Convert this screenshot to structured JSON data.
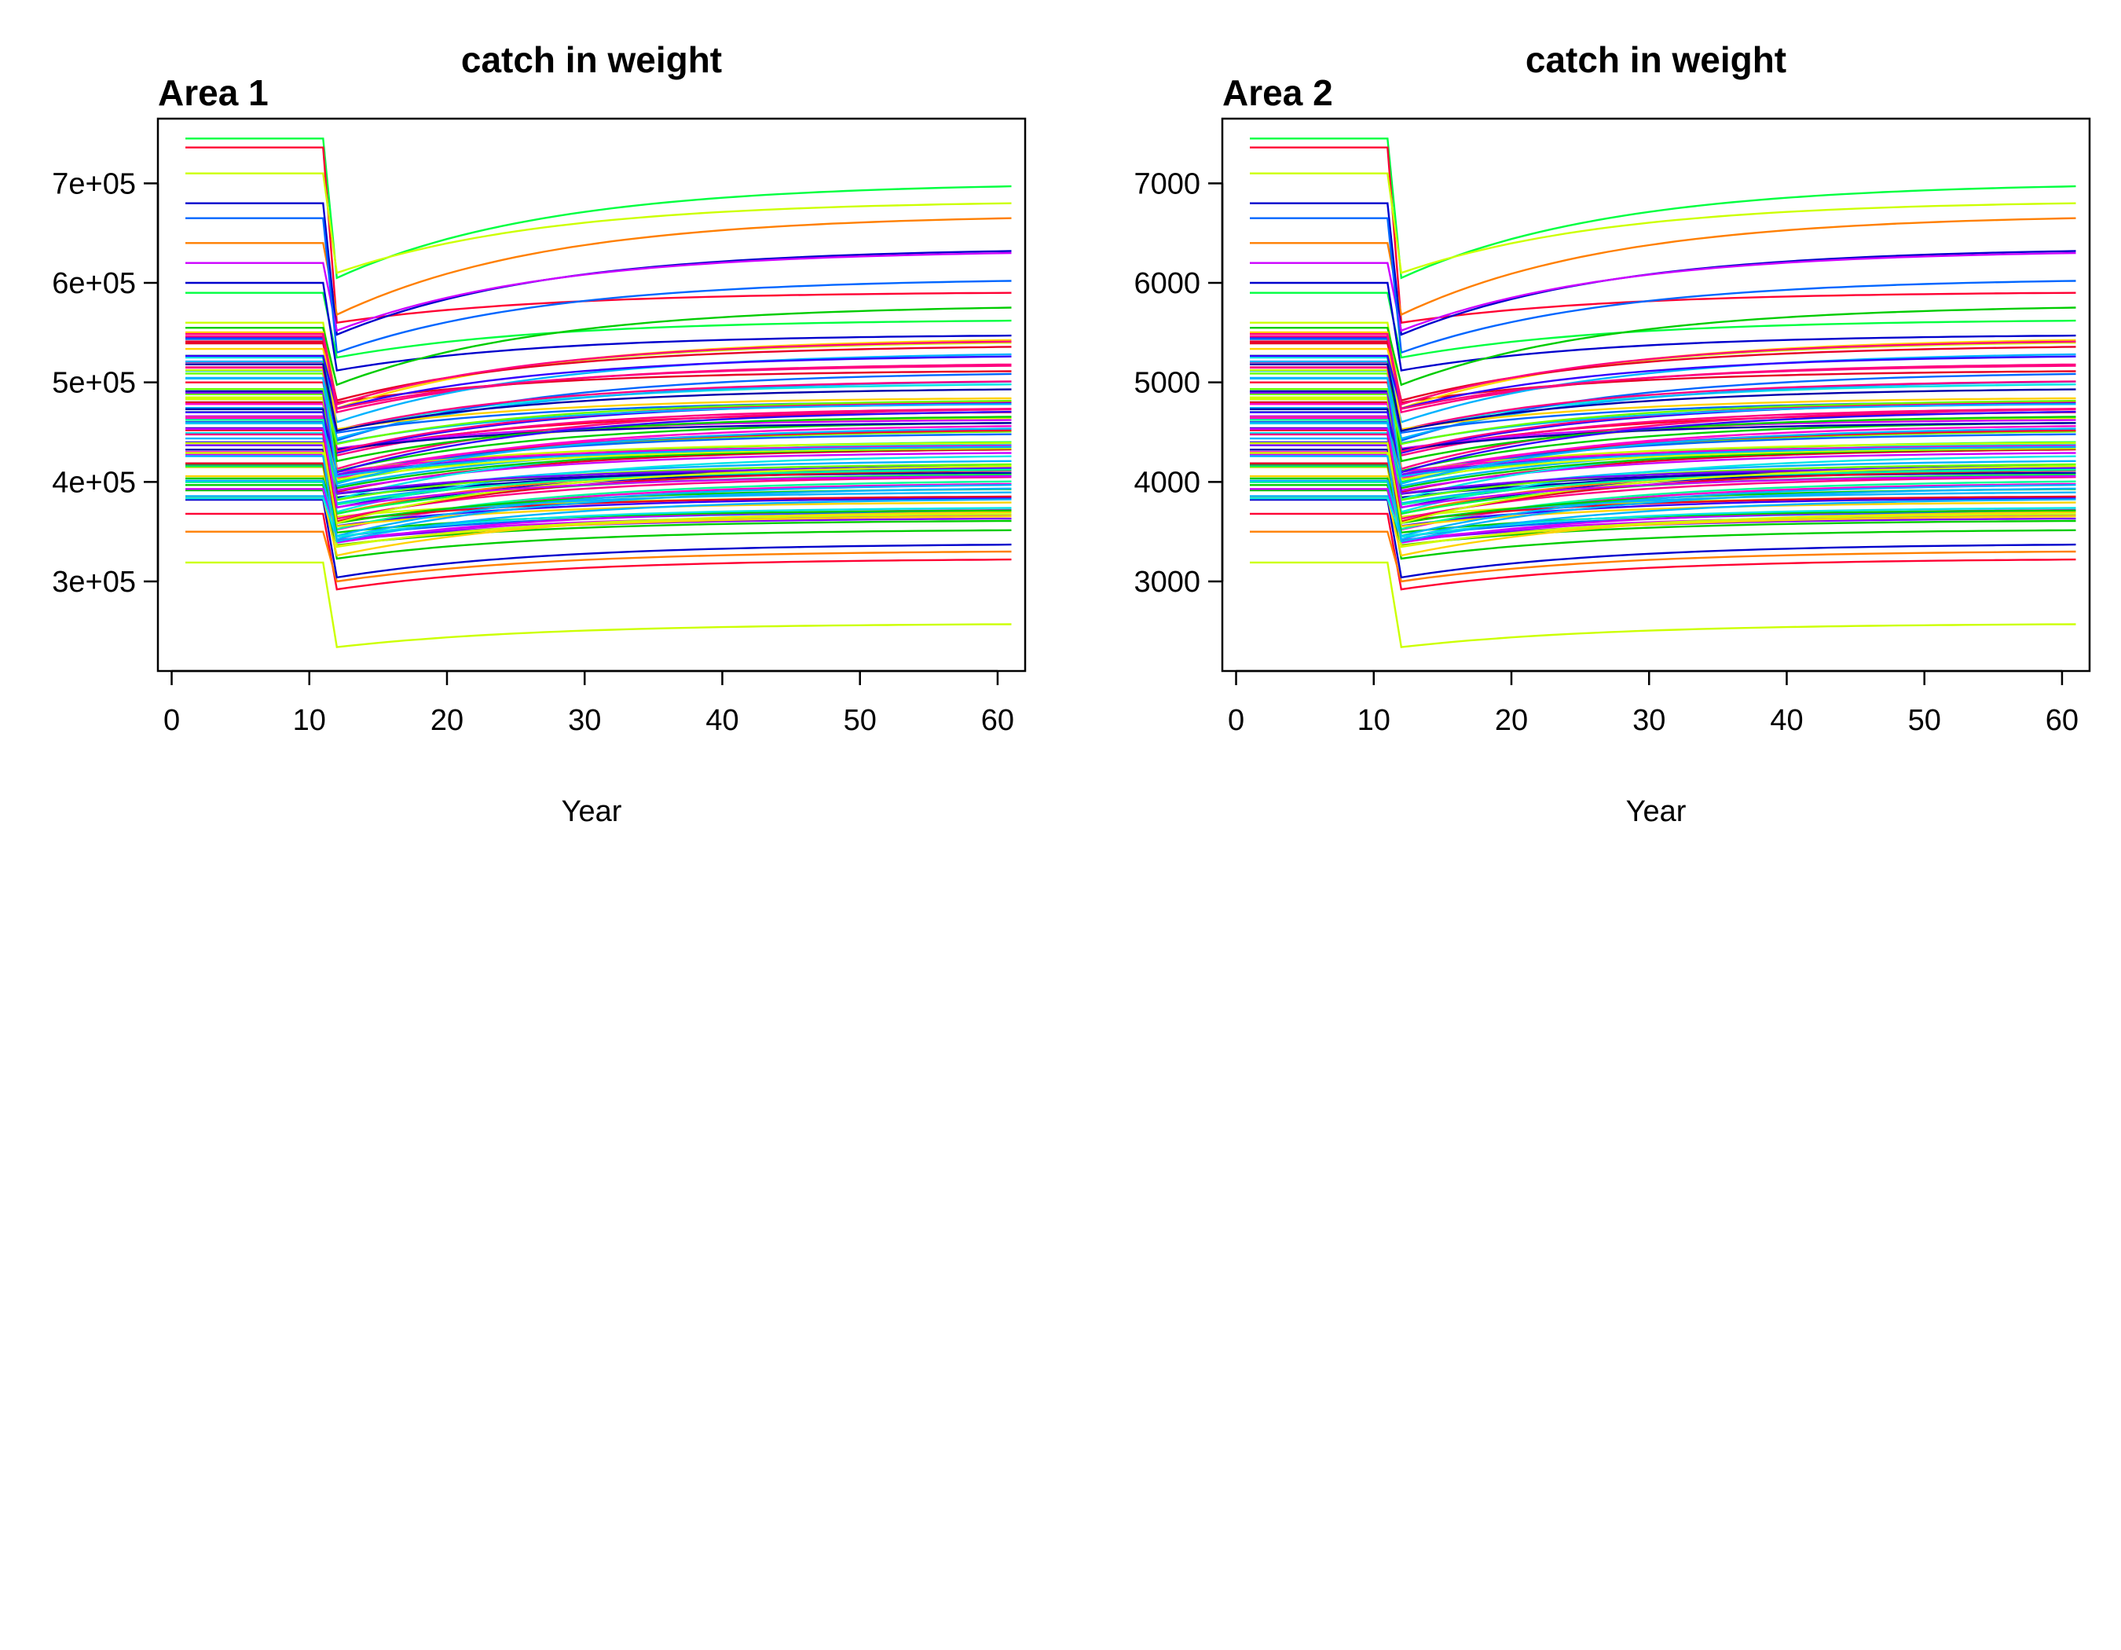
{
  "chart_data": [
    {
      "type": "line",
      "title": "catch in weight",
      "panel_label": "Area 1",
      "xlabel": "Year",
      "ylabel": "",
      "xlim": [
        -1,
        62
      ],
      "ylim": [
        210000,
        765000
      ],
      "x_ticks": [
        0,
        10,
        20,
        30,
        40,
        50,
        60
      ],
      "x_tick_labels": [
        "0",
        "10",
        "20",
        "30",
        "40",
        "50",
        "60"
      ],
      "y_ticks": [
        300000,
        400000,
        500000,
        600000,
        700000
      ],
      "y_tick_labels": [
        "3e+05",
        "4e+05",
        "5e+05",
        "6e+05",
        "7e+05"
      ],
      "grid": false,
      "legend": "none",
      "x_range": [
        1,
        61
      ],
      "shock_year": 11,
      "series_count": 100,
      "series_sample": [
        {
          "color": "#00ff40",
          "pre": 745000,
          "trough": 605000,
          "end": 697000
        },
        {
          "color": "#ff0033",
          "pre": 736000,
          "trough": 560000,
          "end": 590000
        },
        {
          "color": "#ccff00",
          "pre": 710000,
          "trough": 610000,
          "end": 680000
        },
        {
          "color": "#ff7f00",
          "pre": 640000,
          "trough": 568000,
          "end": 665000
        },
        {
          "color": "#0000cc",
          "pre": 680000,
          "trough": 548000,
          "end": 632000
        },
        {
          "color": "#cc00ff",
          "pre": 620000,
          "trough": 552000,
          "end": 630000
        },
        {
          "color": "#0066ff",
          "pre": 665000,
          "trough": 530000,
          "end": 602000
        },
        {
          "color": "#00ff40",
          "pre": 590000,
          "trough": 525000,
          "end": 562000
        },
        {
          "color": "#0000cc",
          "pre": 600000,
          "trough": 512000,
          "end": 547000
        },
        {
          "color": "#ccff00",
          "pre": 560000,
          "trough": 478000,
          "end": 540000
        },
        {
          "color": "#ff0080",
          "pre": 540000,
          "trough": 470000,
          "end": 518000
        },
        {
          "color": "#00e6e6",
          "pre": 525000,
          "trough": 452000,
          "end": 498000
        },
        {
          "color": "#ff0033",
          "pre": 500000,
          "trough": 430000,
          "end": 470000
        },
        {
          "color": "#00ff40",
          "pre": 480000,
          "trough": 400000,
          "end": 440000
        },
        {
          "color": "#0000cc",
          "pre": 460000,
          "trough": 368000,
          "end": 412000
        },
        {
          "color": "#ff00cc",
          "pre": 430000,
          "trough": 352000,
          "end": 398000
        },
        {
          "color": "#ccff00",
          "pre": 415000,
          "trough": 365000,
          "end": 385000
        },
        {
          "color": "#0066ff",
          "pre": 400000,
          "trough": 345000,
          "end": 370000
        },
        {
          "color": "#ff0033",
          "pre": 368000,
          "trough": 292000,
          "end": 322000
        },
        {
          "color": "#ff7f00",
          "pre": 350000,
          "trough": 300000,
          "end": 330000
        },
        {
          "color": "#0000cc",
          "pre": 382000,
          "trough": 304000,
          "end": 337000
        },
        {
          "color": "#ccff00",
          "pre": 319000,
          "trough": 234000,
          "end": 257000
        }
      ]
    },
    {
      "type": "line",
      "title": "catch in weight",
      "panel_label": "Area 2",
      "xlabel": "Year",
      "ylabel": "",
      "xlim": [
        -1,
        62
      ],
      "ylim": [
        2100,
        7650
      ],
      "x_ticks": [
        0,
        10,
        20,
        30,
        40,
        50,
        60
      ],
      "x_tick_labels": [
        "0",
        "10",
        "20",
        "30",
        "40",
        "50",
        "60"
      ],
      "y_ticks": [
        3000,
        4000,
        5000,
        6000,
        7000
      ],
      "y_tick_labels": [
        "3000",
        "4000",
        "5000",
        "6000",
        "7000"
      ],
      "grid": false,
      "legend": "none",
      "x_range": [
        1,
        61
      ],
      "shock_year": 11,
      "series_count": 100,
      "series_sample": [
        {
          "color": "#00ff40",
          "pre": 7450,
          "trough": 6050,
          "end": 6970
        },
        {
          "color": "#ff0033",
          "pre": 7360,
          "trough": 5600,
          "end": 5900
        },
        {
          "color": "#ccff00",
          "pre": 7100,
          "trough": 6100,
          "end": 6800
        },
        {
          "color": "#ff7f00",
          "pre": 6400,
          "trough": 5680,
          "end": 6650
        },
        {
          "color": "#0000cc",
          "pre": 6800,
          "trough": 5480,
          "end": 6320
        },
        {
          "color": "#cc00ff",
          "pre": 6200,
          "trough": 5520,
          "end": 6300
        },
        {
          "color": "#0066ff",
          "pre": 6650,
          "trough": 5300,
          "end": 6020
        },
        {
          "color": "#00ff40",
          "pre": 5900,
          "trough": 5250,
          "end": 5620
        },
        {
          "color": "#0000cc",
          "pre": 6000,
          "trough": 5120,
          "end": 5470
        },
        {
          "color": "#ccff00",
          "pre": 5600,
          "trough": 4780,
          "end": 5400
        },
        {
          "color": "#ff0080",
          "pre": 5400,
          "trough": 4700,
          "end": 5180
        },
        {
          "color": "#00e6e6",
          "pre": 5250,
          "trough": 4520,
          "end": 4980
        },
        {
          "color": "#ff0033",
          "pre": 5000,
          "trough": 4300,
          "end": 4700
        },
        {
          "color": "#00ff40",
          "pre": 4800,
          "trough": 4000,
          "end": 4400
        },
        {
          "color": "#0000cc",
          "pre": 4600,
          "trough": 3680,
          "end": 4120
        },
        {
          "color": "#ff00cc",
          "pre": 4300,
          "trough": 3520,
          "end": 3980
        },
        {
          "color": "#ccff00",
          "pre": 4150,
          "trough": 3650,
          "end": 3850
        },
        {
          "color": "#0066ff",
          "pre": 4000,
          "trough": 3450,
          "end": 3700
        },
        {
          "color": "#ff0033",
          "pre": 3680,
          "trough": 2920,
          "end": 3220
        },
        {
          "color": "#ff7f00",
          "pre": 3500,
          "trough": 3000,
          "end": 3300
        },
        {
          "color": "#0000cc",
          "pre": 3820,
          "trough": 3040,
          "end": 3370
        },
        {
          "color": "#ccff00",
          "pre": 3190,
          "trough": 2340,
          "end": 2570
        }
      ]
    }
  ]
}
